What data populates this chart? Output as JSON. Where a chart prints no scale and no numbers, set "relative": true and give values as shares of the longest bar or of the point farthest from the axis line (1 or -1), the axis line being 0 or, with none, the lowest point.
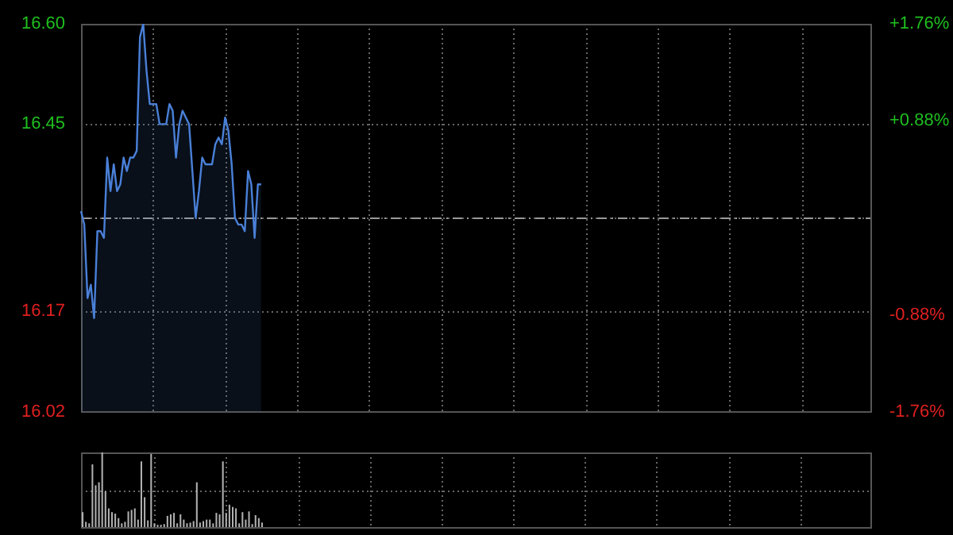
{
  "chart_data": [
    {
      "type": "area",
      "tick_labels": "y",
      "grid": true,
      "categories": [
        null,
        null,
        null,
        null,
        null,
        null,
        null,
        null,
        null,
        null,
        null,
        null,
        null,
        null,
        null,
        null,
        null,
        null,
        null,
        null,
        null,
        null,
        null,
        null,
        null,
        null,
        null,
        null,
        null,
        null,
        null,
        null,
        null,
        null,
        null,
        null,
        null,
        null,
        null,
        null,
        null,
        null,
        null,
        null,
        null,
        null,
        null,
        null,
        null,
        null,
        null,
        null,
        null,
        null,
        null,
        null,
        null,
        null,
        null,
        null,
        null,
        null,
        null,
        null,
        null,
        null,
        null,
        null,
        null,
        null,
        null,
        null,
        null,
        null,
        null,
        null,
        null,
        null,
        null,
        null,
        null,
        null,
        null,
        null,
        null,
        null,
        null,
        null,
        null,
        null,
        null,
        null,
        null,
        null,
        null,
        null,
        null,
        null,
        null,
        null,
        null,
        null,
        null,
        null,
        null,
        null,
        null,
        null,
        null,
        null,
        null,
        null,
        null,
        null,
        null,
        null,
        null,
        null,
        null,
        null,
        null,
        null,
        null,
        null,
        null,
        null,
        null,
        null,
        null,
        null,
        null,
        null,
        null,
        null,
        null,
        null,
        null,
        null,
        null,
        null,
        null,
        null,
        null,
        null,
        null,
        null,
        null,
        null,
        null,
        null,
        null,
        null,
        null,
        null,
        null,
        null,
        null,
        null,
        null,
        null,
        null,
        null,
        null,
        null,
        null,
        null,
        null,
        null,
        null,
        null,
        null,
        null,
        null,
        null,
        null,
        null,
        null,
        null,
        null,
        null,
        null,
        null,
        null,
        null,
        null,
        null,
        null,
        null,
        null,
        null,
        null,
        null,
        null,
        null,
        null,
        null,
        null,
        null,
        null,
        null,
        null,
        null,
        null,
        null,
        null,
        null,
        null,
        null,
        null,
        null,
        null,
        null,
        null,
        null,
        null,
        null,
        null,
        null,
        null,
        null,
        null,
        null,
        null,
        null,
        null,
        null,
        null,
        null,
        null,
        null,
        null,
        null,
        null,
        null,
        null,
        null,
        null,
        null,
        null,
        null,
        null,
        null
      ],
      "series": [
        {
          "color": "#4a80d8",
          "values": [
            16.32,
            16.3,
            16.19,
            16.21,
            16.16,
            16.29,
            16.29,
            16.28,
            16.4,
            16.35,
            16.39,
            16.35,
            16.36,
            16.4,
            16.38,
            16.4,
            16.4,
            16.41,
            16.58,
            16.6,
            16.53,
            16.48,
            16.48,
            16.48,
            16.45,
            16.45,
            16.45,
            16.48,
            16.47,
            16.4,
            16.45,
            16.47,
            16.46,
            16.45,
            16.38,
            16.31,
            16.35,
            16.4,
            16.39,
            16.39,
            16.39,
            16.42,
            16.43,
            16.42,
            16.46,
            16.44,
            16.39,
            16.31,
            16.3,
            16.3,
            16.29,
            16.38,
            16.36,
            16.28,
            16.36,
            16.36,
            null,
            null,
            null,
            null,
            null,
            null,
            null,
            null,
            null,
            null,
            null,
            null,
            null,
            null,
            null,
            null,
            null,
            null,
            null,
            null,
            null,
            null,
            null,
            null,
            null,
            null,
            null,
            null,
            null,
            null,
            null,
            null,
            null,
            null,
            null,
            null,
            null,
            null,
            null,
            null,
            null,
            null,
            null,
            null,
            null,
            null,
            null,
            null,
            null,
            null,
            null,
            null,
            null,
            null,
            null,
            null,
            null,
            null,
            null,
            null,
            null,
            null,
            null,
            null,
            null,
            null,
            null,
            null,
            null,
            null,
            null,
            null,
            null,
            null,
            null,
            null,
            null,
            null,
            null,
            null,
            null,
            null,
            null,
            null,
            null,
            null,
            null,
            null,
            null,
            null,
            null,
            null,
            null,
            null,
            null,
            null,
            null,
            null,
            null,
            null,
            null,
            null,
            null,
            null,
            null,
            null,
            null,
            null,
            null,
            null,
            null,
            null,
            null,
            null,
            null,
            null,
            null,
            null,
            null,
            null,
            null,
            null,
            null,
            null,
            null,
            null,
            null,
            null,
            null,
            null,
            null,
            null,
            null,
            null,
            null,
            null,
            null,
            null,
            null,
            null,
            null,
            null,
            null,
            null,
            null,
            null,
            null,
            null,
            null,
            null,
            null,
            null,
            null,
            null,
            null,
            null,
            null,
            null,
            null,
            null,
            null,
            null,
            null,
            null,
            null,
            null,
            null,
            null,
            null,
            null,
            null,
            null,
            null,
            null,
            null,
            null,
            null,
            null,
            null,
            null,
            null,
            null,
            null,
            null,
            null,
            null
          ]
        }
      ],
      "ylim": [
        16.02,
        16.6
      ],
      "yticks": [
        {
          "value": 16.02,
          "label": "16.02"
        },
        {
          "value": 16.17,
          "label": "16.17"
        },
        {
          "value": 16.31,
          "label": null
        },
        {
          "value": 16.45,
          "label": "16.45"
        },
        {
          "value": 16.6,
          "label": "16.60"
        }
      ],
      "y2lim": [
        -1.76,
        1.76
      ],
      "y2ticks": [
        {
          "value": -1.76,
          "label": "-1.76%"
        },
        {
          "value": -0.88,
          "label": "-0.88%"
        },
        {
          "value": 0,
          "label": null
        },
        {
          "value": 0.88,
          "label": "+0.88%"
        },
        {
          "value": 1.76,
          "label": "+1.76%"
        }
      ],
      "ref_lines": [
        {
          "axis": "y",
          "value": 16.31,
          "line_style": "dashed"
        }
      ]
    },
    {
      "type": "bar",
      "relative": true,
      "tick_labels": false,
      "grid": true,
      "color": "#b0b0b0",
      "categories": [
        null,
        null,
        null,
        null,
        null,
        null,
        null,
        null,
        null,
        null,
        null,
        null,
        null,
        null,
        null,
        null,
        null,
        null,
        null,
        null,
        null,
        null,
        null,
        null,
        null,
        null,
        null,
        null,
        null,
        null,
        null,
        null,
        null,
        null,
        null,
        null,
        null,
        null,
        null,
        null,
        null,
        null,
        null,
        null,
        null,
        null,
        null,
        null,
        null,
        null,
        null,
        null,
        null,
        null,
        null,
        null,
        null,
        null,
        null,
        null,
        null,
        null,
        null,
        null,
        null,
        null,
        null,
        null,
        null,
        null,
        null,
        null,
        null,
        null,
        null,
        null,
        null,
        null,
        null,
        null,
        null,
        null,
        null,
        null,
        null,
        null,
        null,
        null,
        null,
        null,
        null,
        null,
        null,
        null,
        null,
        null,
        null,
        null,
        null,
        null,
        null,
        null,
        null,
        null,
        null,
        null,
        null,
        null,
        null,
        null,
        null,
        null,
        null,
        null,
        null,
        null,
        null,
        null,
        null,
        null,
        null,
        null,
        null,
        null,
        null,
        null,
        null,
        null,
        null,
        null,
        null,
        null,
        null,
        null,
        null,
        null,
        null,
        null,
        null,
        null,
        null,
        null,
        null,
        null,
        null,
        null,
        null,
        null,
        null,
        null,
        null,
        null,
        null,
        null,
        null,
        null,
        null,
        null,
        null,
        null,
        null,
        null,
        null,
        null,
        null,
        null,
        null,
        null,
        null,
        null,
        null,
        null,
        null,
        null,
        null,
        null,
        null,
        null,
        null,
        null,
        null,
        null,
        null,
        null,
        null,
        null,
        null,
        null,
        null,
        null,
        null,
        null,
        null,
        null,
        null,
        null,
        null,
        null,
        null,
        null,
        null,
        null,
        null,
        null,
        null,
        null,
        null,
        null,
        null,
        null,
        null,
        null,
        null,
        null,
        null,
        null,
        null,
        null,
        null,
        null,
        null,
        null,
        null,
        null,
        null,
        null,
        null,
        null,
        null,
        null,
        null,
        null,
        null,
        null,
        null,
        null,
        null,
        null,
        null,
        null,
        null,
        null
      ],
      "values": [
        0.2,
        0.07,
        0.05,
        0.84,
        0.56,
        0.6,
        1,
        0.48,
        0.25,
        0.2,
        0.18,
        0.12,
        0.05,
        0.07,
        0.21,
        0.23,
        0.25,
        0.1,
        0.88,
        0.4,
        0.09,
        0.98,
        0.05,
        0.03,
        0.03,
        0.04,
        0.15,
        0.17,
        0.19,
        0.05,
        0.17,
        0.1,
        0.05,
        0.06,
        0.08,
        0.6,
        0.06,
        0.08,
        0.1,
        0.1,
        0.05,
        0.19,
        0.17,
        0.88,
        0.19,
        0.3,
        0.27,
        0.25,
        0.05,
        0.2,
        0.1,
        0.21,
        0.04,
        0.16,
        0.12,
        0.06,
        null,
        null,
        null,
        null,
        null,
        null,
        null,
        null,
        null,
        null,
        null,
        null,
        null,
        null,
        null,
        null,
        null,
        null,
        null,
        null,
        null,
        null,
        null,
        null,
        null,
        null,
        null,
        null,
        null,
        null,
        null,
        null,
        null,
        null,
        null,
        null,
        null,
        null,
        null,
        null,
        null,
        null,
        null,
        null,
        null,
        null,
        null,
        null,
        null,
        null,
        null,
        null,
        null,
        null,
        null,
        null,
        null,
        null,
        null,
        null,
        null,
        null,
        null,
        null,
        null,
        null,
        null,
        null,
        null,
        null,
        null,
        null,
        null,
        null,
        null,
        null,
        null,
        null,
        null,
        null,
        null,
        null,
        null,
        null,
        null,
        null,
        null,
        null,
        null,
        null,
        null,
        null,
        null,
        null,
        null,
        null,
        null,
        null,
        null,
        null,
        null,
        null,
        null,
        null,
        null,
        null,
        null,
        null,
        null,
        null,
        null,
        null,
        null,
        null,
        null,
        null,
        null,
        null,
        null,
        null,
        null,
        null,
        null,
        null,
        null,
        null,
        null,
        null,
        null,
        null,
        null,
        null,
        null,
        null,
        null,
        null,
        null,
        null,
        null,
        null,
        null,
        null,
        null,
        null,
        null,
        null,
        null,
        null,
        null,
        null,
        null,
        null,
        null,
        null,
        null,
        null,
        null,
        null,
        null,
        null,
        null,
        null,
        null,
        null,
        null,
        null,
        null,
        null,
        null,
        null,
        null,
        null,
        null,
        null,
        null,
        null,
        null,
        null,
        null,
        null,
        null,
        null,
        null,
        null,
        null,
        null
      ]
    }
  ]
}
